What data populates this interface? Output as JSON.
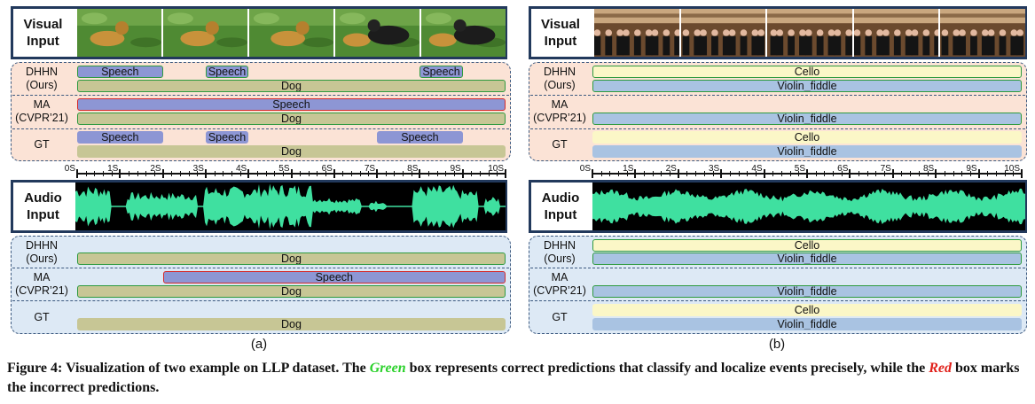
{
  "colors": {
    "speech": "#8d96d4",
    "dog": "#c7c695",
    "cello": "#fbf7c7",
    "violin": "#a9c3e2",
    "correct_border": "#2e9a3f",
    "incorrect_border": "#d62a2a",
    "waveform": "#3fe0a0",
    "visual_bg": "#fbe3d6",
    "audio_bg": "#dde9f5"
  },
  "axis_ticks": [
    "0S",
    "1S",
    "2S",
    "3S",
    "4S",
    "5S",
    "6S",
    "7S",
    "8S",
    "9S",
    "10S"
  ],
  "panels": [
    {
      "id": "a",
      "sublabel": "(a)",
      "visual_input_label": "Visual\nInput",
      "audio_input_label": "Audio\nInput",
      "frame_subject": "dog",
      "visual_rows": [
        {
          "label": "DHHN\n(Ours)",
          "tracks": [
            [
              {
                "text": "Speech",
                "start": 0,
                "end": 2,
                "color": "speech",
                "status": "correct"
              },
              {
                "text": "Speech",
                "start": 3,
                "end": 4,
                "color": "speech",
                "status": "correct"
              },
              {
                "text": "Speech",
                "start": 8,
                "end": 9,
                "color": "speech",
                "status": "correct"
              }
            ],
            [
              {
                "text": "Dog",
                "start": 0,
                "end": 10,
                "color": "dog",
                "status": "correct"
              }
            ]
          ]
        },
        {
          "label": "MA\n(CVPR’21)",
          "tracks": [
            [
              {
                "text": "Speech",
                "start": 0,
                "end": 10,
                "color": "speech",
                "status": "incorrect"
              }
            ],
            [
              {
                "text": "Dog",
                "start": 0,
                "end": 10,
                "color": "dog",
                "status": "correct"
              }
            ]
          ]
        },
        {
          "label": "GT",
          "tracks": [
            [
              {
                "text": "Speech",
                "start": 0,
                "end": 2,
                "color": "speech",
                "status": "gt"
              },
              {
                "text": "Speech",
                "start": 3,
                "end": 4,
                "color": "speech",
                "status": "gt"
              },
              {
                "text": "Speech",
                "start": 7,
                "end": 9,
                "color": "speech",
                "status": "gt"
              }
            ],
            [
              {
                "text": "Dog",
                "start": 0,
                "end": 10,
                "color": "dog",
                "status": "gt"
              }
            ]
          ]
        }
      ],
      "audio_rows": [
        {
          "label": "DHHN\n(Ours)",
          "tracks": [
            [],
            [
              {
                "text": "Dog",
                "start": 0,
                "end": 10,
                "color": "dog",
                "status": "correct"
              }
            ]
          ]
        },
        {
          "label": "MA\n(CVPR’21)",
          "tracks": [
            [
              {
                "text": "Speech",
                "start": 2,
                "end": 10,
                "color": "speech",
                "status": "incorrect"
              }
            ],
            [
              {
                "text": "Dog",
                "start": 0,
                "end": 10,
                "color": "dog",
                "status": "correct"
              }
            ]
          ]
        },
        {
          "label": "GT",
          "tracks": [
            [],
            [
              {
                "text": "Dog",
                "start": 0,
                "end": 10,
                "color": "dog",
                "status": "gt"
              }
            ]
          ]
        }
      ]
    },
    {
      "id": "b",
      "sublabel": "(b)",
      "visual_input_label": "Visual\nInput",
      "audio_input_label": "Audio\nInput",
      "frame_subject": "orchestra",
      "visual_rows": [
        {
          "label": "DHHN\n(Ours)",
          "tracks": [
            [
              {
                "text": "Cello",
                "start": 0,
                "end": 10,
                "color": "cello",
                "status": "correct"
              }
            ],
            [
              {
                "text": "Violin_fiddle",
                "start": 0,
                "end": 10,
                "color": "violin",
                "status": "correct"
              }
            ]
          ]
        },
        {
          "label": "MA\n(CVPR’21)",
          "tracks": [
            [],
            [
              {
                "text": "Violin_fiddle",
                "start": 0,
                "end": 10,
                "color": "violin",
                "status": "correct"
              }
            ]
          ]
        },
        {
          "label": "GT",
          "tracks": [
            [
              {
                "text": "Cello",
                "start": 0,
                "end": 10,
                "color": "cello",
                "status": "gt"
              }
            ],
            [
              {
                "text": "Violin_fiddle",
                "start": 0,
                "end": 10,
                "color": "violin",
                "status": "gt"
              }
            ]
          ]
        }
      ],
      "audio_rows": [
        {
          "label": "DHHN\n(Ours)",
          "tracks": [
            [
              {
                "text": "Cello",
                "start": 0,
                "end": 10,
                "color": "cello",
                "status": "correct"
              }
            ],
            [
              {
                "text": "Violin_fiddle",
                "start": 0,
                "end": 10,
                "color": "violin",
                "status": "correct"
              }
            ]
          ]
        },
        {
          "label": "MA\n(CVPR’21)",
          "tracks": [
            [],
            [
              {
                "text": "Violin_fiddle",
                "start": 0,
                "end": 10,
                "color": "violin",
                "status": "correct"
              }
            ]
          ]
        },
        {
          "label": "GT",
          "tracks": [
            [
              {
                "text": "Cello",
                "start": 0,
                "end": 10,
                "color": "cello",
                "status": "gt"
              }
            ],
            [
              {
                "text": "Violin_fiddle",
                "start": 0,
                "end": 10,
                "color": "violin",
                "status": "gt"
              }
            ]
          ]
        }
      ]
    }
  ],
  "caption": {
    "prefix": "Figure 4: Visualization of two example on LLP dataset. The ",
    "green_word": "Green",
    "middle": " box represents correct predictions that classify and localize events precisely, while the ",
    "red_word": "Red",
    "suffix": " box marks the incorrect predictions."
  }
}
